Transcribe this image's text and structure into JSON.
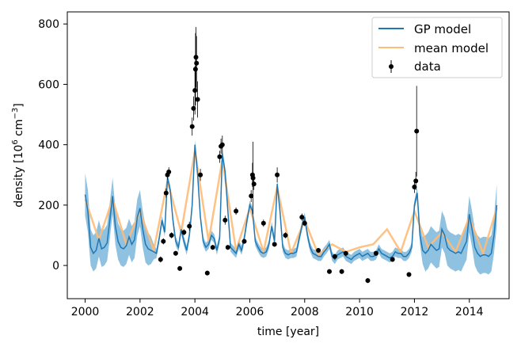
{
  "chart_data": {
    "type": "line",
    "title": "",
    "xlabel": "time [year]",
    "ylabel_main": "density [10",
    "ylabel_exp": "6",
    "ylabel_mid": " cm",
    "ylabel_exp2": "−3",
    "ylabel_end": "]",
    "xlim": [
      1999.35,
      2015.45
    ],
    "ylim": [
      -110,
      840
    ],
    "x_ticks": [
      2000,
      2002,
      2004,
      2006,
      2008,
      2010,
      2012,
      2014
    ],
    "y_ticks": [
      0,
      200,
      400,
      600,
      800
    ],
    "grid": false,
    "legend_position": "top-right",
    "legend": [
      {
        "name": "GP model",
        "kind": "line",
        "color": "#1f77b4"
      },
      {
        "name": "mean model",
        "kind": "line",
        "color": "#ffbb78"
      },
      {
        "name": "data",
        "kind": "errorbar-point",
        "color": "#000000"
      }
    ],
    "series": [
      {
        "name": "GP model",
        "color": "#1f77b4",
        "band_color": "#6aaed6",
        "x": [
          2000.0,
          2000.1,
          2000.2,
          2000.3,
          2000.4,
          2000.5,
          2000.6,
          2000.7,
          2000.8,
          2000.9,
          2001.0,
          2001.1,
          2001.2,
          2001.3,
          2001.4,
          2001.5,
          2001.6,
          2001.7,
          2001.8,
          2001.9,
          2002.0,
          2002.1,
          2002.2,
          2002.3,
          2002.4,
          2002.5,
          2002.6,
          2002.7,
          2002.8,
          2002.9,
          2003.0,
          2003.1,
          2003.2,
          2003.3,
          2003.4,
          2003.5,
          2003.6,
          2003.7,
          2003.8,
          2003.9,
          2004.0,
          2004.1,
          2004.2,
          2004.3,
          2004.4,
          2004.5,
          2004.6,
          2004.7,
          2004.8,
          2004.9,
          2005.0,
          2005.1,
          2005.2,
          2005.3,
          2005.4,
          2005.5,
          2005.6,
          2005.7,
          2005.8,
          2005.9,
          2006.0,
          2006.1,
          2006.2,
          2006.3,
          2006.4,
          2006.5,
          2006.6,
          2006.7,
          2006.8,
          2006.9,
          2007.0,
          2007.1,
          2007.2,
          2007.3,
          2007.4,
          2007.5,
          2007.6,
          2007.7,
          2007.8,
          2007.9,
          2008.0,
          2008.1,
          2008.2,
          2008.3,
          2008.4,
          2008.5,
          2008.6,
          2008.7,
          2008.8,
          2008.9,
          2009.0,
          2009.1,
          2009.2,
          2009.3,
          2009.4,
          2009.5,
          2009.6,
          2009.7,
          2009.8,
          2009.9,
          2010.0,
          2010.1,
          2010.2,
          2010.3,
          2010.4,
          2010.5,
          2010.6,
          2010.7,
          2010.8,
          2010.9,
          2011.0,
          2011.1,
          2011.2,
          2011.3,
          2011.4,
          2011.5,
          2011.6,
          2011.7,
          2011.8,
          2011.9,
          2012.0,
          2012.1,
          2012.2,
          2012.3,
          2012.4,
          2012.5,
          2012.6,
          2012.7,
          2012.8,
          2012.9,
          2013.0,
          2013.1,
          2013.2,
          2013.3,
          2013.4,
          2013.5,
          2013.6,
          2013.7,
          2013.8,
          2013.9,
          2014.0,
          2014.1,
          2014.2,
          2014.3,
          2014.4,
          2014.5,
          2014.6,
          2014.7,
          2014.8,
          2014.9,
          2015.0
        ],
        "values": [
          235,
          180,
          60,
          40,
          50,
          90,
          55,
          60,
          75,
          150,
          230,
          130,
          80,
          60,
          55,
          65,
          95,
          70,
          85,
          160,
          190,
          120,
          70,
          55,
          50,
          45,
          40,
          90,
          150,
          110,
          290,
          250,
          150,
          80,
          60,
          120,
          80,
          50,
          100,
          200,
          400,
          300,
          160,
          80,
          60,
          70,
          100,
          90,
          50,
          90,
          370,
          310,
          180,
          60,
          50,
          40,
          70,
          50,
          90,
          150,
          200,
          180,
          80,
          60,
          45,
          40,
          45,
          70,
          130,
          80,
          270,
          180,
          60,
          40,
          35,
          40,
          40,
          45,
          90,
          130,
          160,
          100,
          60,
          40,
          35,
          30,
          30,
          45,
          55,
          70,
          30,
          20,
          35,
          40,
          45,
          30,
          25,
          20,
          30,
          35,
          40,
          30,
          35,
          40,
          30,
          30,
          35,
          55,
          40,
          35,
          30,
          25,
          30,
          45,
          40,
          40,
          30,
          30,
          40,
          60,
          200,
          240,
          100,
          50,
          40,
          50,
          70,
          60,
          50,
          55,
          120,
          100,
          60,
          50,
          45,
          40,
          45,
          40,
          60,
          80,
          170,
          120,
          60,
          40,
          30,
          35,
          35,
          30,
          40,
          100,
          200
        ],
        "band_halfwidth": [
          70,
          70,
          60,
          60,
          60,
          60,
          60,
          60,
          60,
          60,
          60,
          60,
          60,
          60,
          60,
          60,
          60,
          60,
          60,
          60,
          60,
          60,
          60,
          55,
          45,
          25,
          15,
          15,
          15,
          15,
          15,
          15,
          15,
          15,
          15,
          15,
          15,
          15,
          15,
          15,
          15,
          15,
          15,
          15,
          15,
          15,
          15,
          15,
          15,
          15,
          15,
          15,
          15,
          15,
          15,
          15,
          15,
          15,
          15,
          15,
          15,
          15,
          15,
          15,
          15,
          15,
          15,
          15,
          15,
          15,
          15,
          15,
          15,
          15,
          15,
          15,
          15,
          15,
          15,
          15,
          15,
          15,
          15,
          15,
          15,
          15,
          15,
          15,
          15,
          15,
          15,
          15,
          15,
          15,
          15,
          15,
          15,
          15,
          15,
          15,
          15,
          15,
          15,
          15,
          15,
          15,
          15,
          15,
          15,
          15,
          15,
          15,
          15,
          15,
          15,
          15,
          15,
          15,
          15,
          15,
          15,
          20,
          30,
          45,
          60,
          60,
          60,
          60,
          60,
          60,
          60,
          60,
          60,
          60,
          60,
          60,
          60,
          60,
          60,
          60,
          60,
          60,
          60,
          60,
          60,
          60,
          60,
          60,
          60,
          60,
          70
        ]
      },
      {
        "name": "mean model",
        "color": "#ffbb78",
        "x": [
          2000.0,
          2000.5,
          2001.0,
          2001.5,
          2002.0,
          2002.5,
          2003.0,
          2003.5,
          2004.0,
          2004.5,
          2005.0,
          2005.5,
          2006.0,
          2006.5,
          2007.0,
          2007.5,
          2008.0,
          2008.5,
          2009.0,
          2009.5,
          2010.0,
          2010.5,
          2011.0,
          2011.5,
          2012.0,
          2012.5,
          2013.0,
          2013.5,
          2014.0,
          2014.5,
          2015.0
        ],
        "values": [
          220,
          85,
          220,
          70,
          180,
          50,
          280,
          110,
          380,
          80,
          350,
          50,
          190,
          45,
          260,
          40,
          150,
          35,
          70,
          45,
          60,
          70,
          120,
          45,
          180,
          60,
          110,
          45,
          160,
          40,
          190
        ]
      }
    ],
    "data_points": {
      "name": "data",
      "color": "#000000",
      "x": [
        2002.75,
        2002.85,
        2002.95,
        2003.0,
        2003.05,
        2003.15,
        2003.3,
        2003.45,
        2003.6,
        2003.8,
        2003.9,
        2003.95,
        2004.0,
        2004.02,
        2004.04,
        2004.06,
        2004.1,
        2004.2,
        2004.45,
        2004.65,
        2004.9,
        2004.95,
        2005.0,
        2005.1,
        2005.2,
        2005.5,
        2005.8,
        2006.05,
        2006.1,
        2006.12,
        2006.15,
        2006.5,
        2006.9,
        2007.0,
        2007.3,
        2007.9,
        2008.0,
        2008.5,
        2008.9,
        2009.1,
        2009.35,
        2009.5,
        2010.3,
        2010.6,
        2011.2,
        2011.8,
        2012.0,
        2012.05,
        2012.08
      ],
      "y": [
        20,
        80,
        240,
        300,
        310,
        100,
        40,
        -10,
        110,
        130,
        460,
        520,
        580,
        650,
        690,
        670,
        550,
        300,
        -25,
        60,
        360,
        395,
        400,
        150,
        60,
        180,
        80,
        230,
        300,
        290,
        270,
        140,
        70,
        300,
        100,
        160,
        140,
        50,
        -20,
        30,
        -20,
        40,
        -50,
        40,
        20,
        -30,
        260,
        280,
        445
      ],
      "yerr": [
        10,
        10,
        15,
        15,
        15,
        10,
        8,
        8,
        10,
        15,
        30,
        40,
        80,
        120,
        100,
        90,
        60,
        20,
        8,
        8,
        20,
        25,
        30,
        15,
        8,
        12,
        8,
        20,
        40,
        120,
        20,
        12,
        8,
        25,
        10,
        12,
        10,
        8,
        8,
        8,
        8,
        8,
        8,
        8,
        8,
        8,
        20,
        30,
        150
      ]
    }
  }
}
